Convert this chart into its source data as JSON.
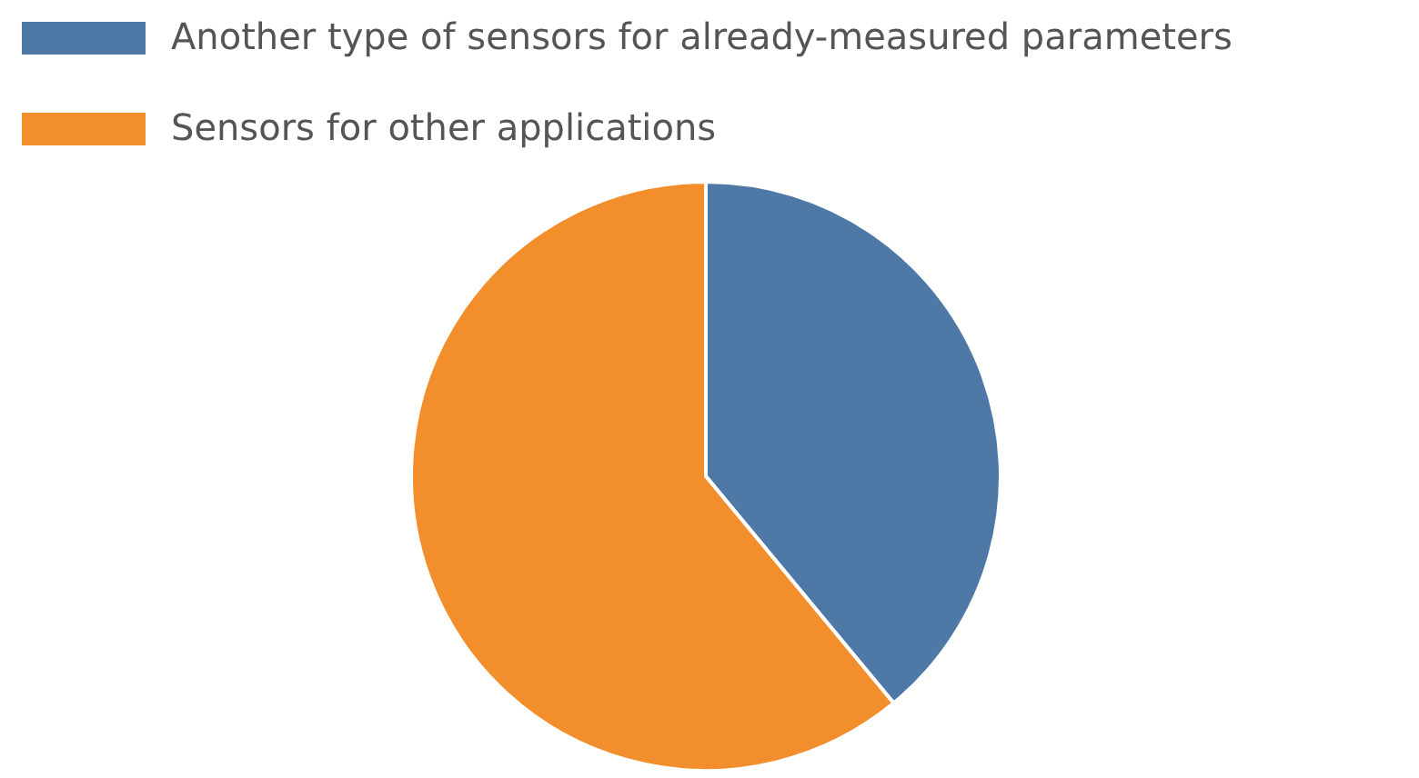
{
  "chart_data": {
    "type": "pie",
    "categories": [
      "Another type of sensors for already-measured parameters",
      "Sensors for other applications"
    ],
    "values": [
      39,
      61
    ],
    "colors": [
      "#4e79a7",
      "#f28e2b"
    ],
    "legend": "top left"
  }
}
